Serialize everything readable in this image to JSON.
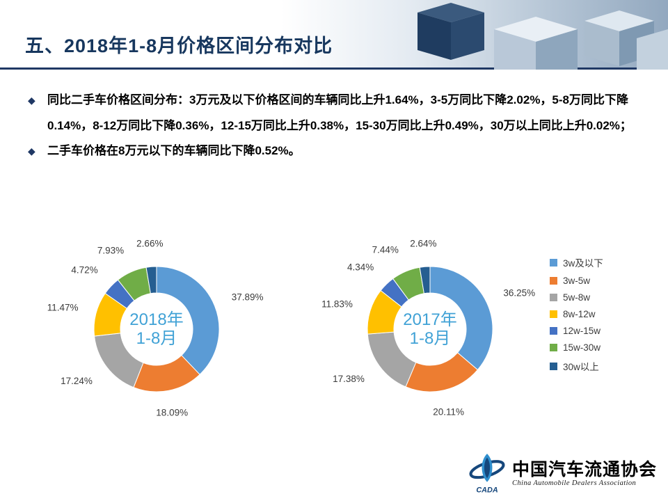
{
  "slide": {
    "title": "五、2018年1-8月价格区间分布对比",
    "bullets": [
      {
        "marker": "◆",
        "text": "同比二手车价格区间分布：3万元及以下价格区间的车辆同比上升1.64%，3-5万同比下降2.02%，5-8万同比下降0.14%，8-12万同比下降0.36%，12-15万同比上升0.38%，15-30万同比上升0.49%，30万以上同比上升0.02%；"
      },
      {
        "marker": "◆",
        "text": "二手车价格在8万元以下的车辆同比下降0.52%。"
      }
    ]
  },
  "chart_data": [
    {
      "type": "pie",
      "subtype": "donut",
      "title": "2018年1-8月",
      "center_lines": [
        "2018年",
        "1-8月"
      ],
      "categories": [
        "3w及以下",
        "3w-5w",
        "5w-8w",
        "8w-12w",
        "12w-15w",
        "15w-30w",
        "30w以上"
      ],
      "values": [
        37.89,
        18.09,
        17.24,
        11.47,
        4.72,
        7.93,
        2.66
      ],
      "labels": [
        "37.89%",
        "18.09%",
        "17.24%",
        "11.47%",
        "4.72%",
        "7.93%",
        "2.66%"
      ],
      "colors": [
        "#5B9BD5",
        "#ED7D31",
        "#A5A5A5",
        "#FFC000",
        "#4472C4",
        "#70AD47",
        "#255E91"
      ],
      "start_angle_deg": 0,
      "direction": "clockwise",
      "legend_position": "right"
    },
    {
      "type": "pie",
      "subtype": "donut",
      "title": "2017年1-8月",
      "center_lines": [
        "2017年",
        "1-8月"
      ],
      "categories": [
        "3w及以下",
        "3w-5w",
        "5w-8w",
        "8w-12w",
        "12w-15w",
        "15w-30w",
        "30w以上"
      ],
      "values": [
        36.25,
        20.11,
        17.38,
        11.83,
        4.34,
        7.44,
        2.64
      ],
      "labels": [
        "36.25%",
        "20.11%",
        "17.38%",
        "11.83%",
        "4.34%",
        "7.44%",
        "2.64%"
      ],
      "colors": [
        "#5B9BD5",
        "#ED7D31",
        "#A5A5A5",
        "#FFC000",
        "#4472C4",
        "#70AD47",
        "#255E91"
      ],
      "start_angle_deg": 0,
      "direction": "clockwise",
      "legend_position": "right"
    }
  ],
  "legend": {
    "items": [
      {
        "label": "3w及以下",
        "color": "#5B9BD5"
      },
      {
        "label": "3w-5w",
        "color": "#ED7D31"
      },
      {
        "label": "5w-8w",
        "color": "#A5A5A5"
      },
      {
        "label": "8w-12w",
        "color": "#FFC000"
      },
      {
        "label": "12w-15w",
        "color": "#4472C4"
      },
      {
        "label": "15w-30w",
        "color": "#70AD47"
      },
      {
        "label": "30w以上",
        "color": "#255E91"
      }
    ]
  },
  "footer": {
    "logo_text": "CADA",
    "org_cn": "中国汽车流通协会",
    "org_en": "China Automobile Dealers Association"
  },
  "colors": {
    "title": "#17375E",
    "header_rule": "#1F3864",
    "center_label": "#41A2D6"
  }
}
